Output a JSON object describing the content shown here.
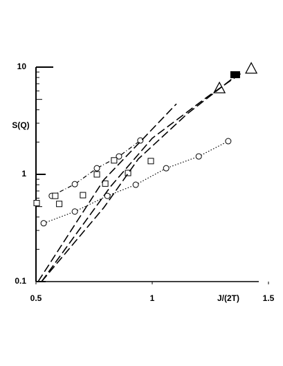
{
  "chart_data": {
    "type": "scatter",
    "ylabel": "S(Q)",
    "xlabel": "J/(2T)",
    "xlim": [
      0.5,
      1.5
    ],
    "ylim": [
      0.1,
      10
    ],
    "ylog": true,
    "xticks": [
      0.5,
      1,
      1.5
    ],
    "yticks": [
      0.1,
      1,
      10
    ],
    "series": [
      {
        "marker": "circle",
        "line": "dashdot",
        "color": "#000000",
        "x": [
          0.568,
          0.667,
          0.762,
          0.857,
          0.949
        ],
        "values": [
          0.63,
          0.81,
          1.14,
          1.47,
          2.07
        ]
      },
      {
        "marker": "circle",
        "line": "dotted",
        "color": "#000000",
        "x": [
          0.533,
          0.667,
          0.807,
          0.929,
          1.06,
          1.2,
          1.327
        ],
        "values": [
          0.35,
          0.45,
          0.63,
          0.8,
          1.14,
          1.47,
          2.04
        ]
      },
      {
        "marker": "square",
        "line": "none",
        "color": "#000000",
        "x": [
          0.503,
          0.583,
          0.6,
          0.702,
          0.762,
          0.798,
          0.836,
          0.896,
          0.994
        ],
        "values": [
          0.54,
          0.63,
          0.53,
          0.64,
          1.0,
          0.82,
          1.35,
          1.03,
          1.33
        ]
      },
      {
        "marker": "triangle",
        "line": "none",
        "color": "#000000",
        "x": [
          1.289,
          1.426
        ],
        "values": [
          6.3,
          9.6
        ]
      },
      {
        "marker": "filled-square",
        "line": "none",
        "color": "#000000",
        "x": [
          1.357
        ],
        "values": [
          8.5
        ]
      },
      {
        "marker": "none",
        "line": "dashed",
        "color": "#000000",
        "x": [
          0.509,
          0.792,
          1.104
        ],
        "values": [
          0.1,
          0.89,
          4.54
        ]
      },
      {
        "marker": "none",
        "line": "dashed",
        "color": "#000000",
        "x": [
          0.524,
          0.821,
          1.0,
          1.238,
          1.387
        ],
        "values": [
          0.1,
          0.77,
          2.17,
          5.3,
          8.9
        ]
      },
      {
        "marker": "none",
        "line": "dashed",
        "color": "#000000",
        "x": [
          0.524,
          0.792,
          0.94,
          1.149,
          1.357
        ],
        "values": [
          0.1,
          0.49,
          1.39,
          3.64,
          8.2
        ]
      }
    ]
  }
}
